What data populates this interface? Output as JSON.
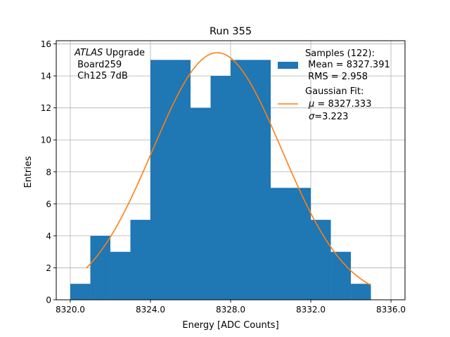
{
  "chart_data": {
    "type": "bar",
    "title": "Run 355",
    "xlabel": "Energy [ADC Counts]",
    "ylabel": "Entries",
    "xlim": [
      8319.3,
      8336.7
    ],
    "ylim": [
      0,
      16.2
    ],
    "xticks": [
      8320,
      8324,
      8328,
      8332,
      8336
    ],
    "xtick_labels": [
      "8320.0",
      "8324.0",
      "8328.0",
      "8332.0",
      "8336.0"
    ],
    "yticks": [
      0,
      2,
      4,
      6,
      8,
      10,
      12,
      14,
      16
    ],
    "ytick_labels": [
      "0",
      "2",
      "4",
      "6",
      "8",
      "10",
      "12",
      "14",
      "16"
    ],
    "grid": true,
    "histogram": {
      "name": "Samples",
      "color": "#1f77b4",
      "bin_edges": [
        8320,
        8321,
        8322,
        8323,
        8324,
        8325,
        8326,
        8327,
        8328,
        8329,
        8330,
        8331,
        8332,
        8333,
        8334,
        8335
      ],
      "counts": [
        1,
        4,
        3,
        5,
        15,
        15,
        12,
        14,
        15,
        15,
        7,
        7,
        5,
        3,
        1
      ]
    },
    "fit": {
      "name": "Gaussian Fit",
      "type": "gaussian",
      "color": "#ff7f0e",
      "mean": 8327.333,
      "sigma": 3.223,
      "amplitude": 15.45,
      "x_range": [
        8320.8,
        8335
      ]
    },
    "annotation": {
      "italic": "ATLAS",
      "upright": " Upgrade",
      "line2": " Board259",
      "line3": " Ch125 7dB"
    },
    "legend": {
      "position": "top-right",
      "samples_title": "Samples (122):",
      "samples_mean": " Mean = 8327.391",
      "samples_rms": " RMS = 2.958",
      "fit_title": "Gaussian Fit:",
      "fit_mu_symbol": "μ",
      "fit_mu_text": " = 8327.333",
      "fit_sigma_symbol": "σ",
      "fit_sigma_text": "=3.223"
    }
  }
}
